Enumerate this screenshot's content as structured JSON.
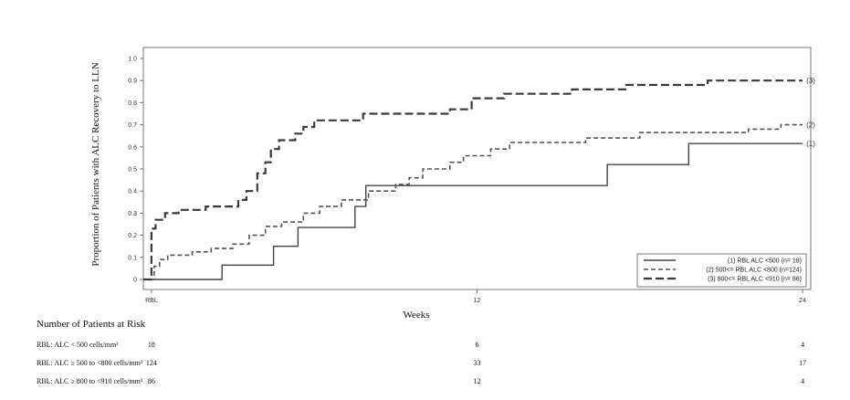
{
  "chart_data": {
    "type": "line",
    "step": true,
    "xlabel": "Weeks",
    "ylabel": "Proportion of Patients with ALC Recovery to LLN",
    "xticks": [
      {
        "value": 0,
        "label": "RBL"
      },
      {
        "value": 12,
        "label": "12"
      },
      {
        "value": 24,
        "label": "24"
      }
    ],
    "xlim": [
      -0.3,
      24.3
    ],
    "ylim": [
      0,
      1.0
    ],
    "yticks": [
      "0",
      "0.1",
      "0.2",
      "0.3",
      "0.4",
      "0.5",
      "0.6",
      "0.7",
      "0.8",
      "0.9",
      "1.0"
    ],
    "legend_position": "bottom-right",
    "series": [
      {
        "name": "(1) RBL ALC <500 (n= 18)",
        "end_label": "(1)",
        "style": "solid",
        "points": [
          [
            -0.3,
            0
          ],
          [
            2.6,
            0
          ],
          [
            2.6,
            0.065
          ],
          [
            4.5,
            0.065
          ],
          [
            4.5,
            0.15
          ],
          [
            5.4,
            0.15
          ],
          [
            5.4,
            0.235
          ],
          [
            7.5,
            0.235
          ],
          [
            7.5,
            0.33
          ],
          [
            7.9,
            0.33
          ],
          [
            7.9,
            0.425
          ],
          [
            16.8,
            0.425
          ],
          [
            16.8,
            0.52
          ],
          [
            19.8,
            0.52
          ],
          [
            19.8,
            0.615
          ],
          [
            24,
            0.615
          ]
        ]
      },
      {
        "name": "(2) 500<= RBL ALC <800 (n=124)",
        "end_label": "(2)",
        "style": "dash",
        "points": [
          [
            -0.3,
            0
          ],
          [
            0.1,
            0
          ],
          [
            0.1,
            0.06
          ],
          [
            0.3,
            0.06
          ],
          [
            0.3,
            0.09
          ],
          [
            0.6,
            0.09
          ],
          [
            0.6,
            0.11
          ],
          [
            1.5,
            0.11
          ],
          [
            1.5,
            0.125
          ],
          [
            2.2,
            0.125
          ],
          [
            2.2,
            0.14
          ],
          [
            3.0,
            0.14
          ],
          [
            3.0,
            0.16
          ],
          [
            3.6,
            0.16
          ],
          [
            3.6,
            0.2
          ],
          [
            4.2,
            0.2
          ],
          [
            4.2,
            0.24
          ],
          [
            4.8,
            0.24
          ],
          [
            4.8,
            0.26
          ],
          [
            5.6,
            0.26
          ],
          [
            5.6,
            0.3
          ],
          [
            6.2,
            0.3
          ],
          [
            6.2,
            0.33
          ],
          [
            7.0,
            0.33
          ],
          [
            7.0,
            0.36
          ],
          [
            8.0,
            0.36
          ],
          [
            8.0,
            0.4
          ],
          [
            9.0,
            0.4
          ],
          [
            9.0,
            0.43
          ],
          [
            9.5,
            0.43
          ],
          [
            9.5,
            0.46
          ],
          [
            10.0,
            0.46
          ],
          [
            10.0,
            0.5
          ],
          [
            11.0,
            0.5
          ],
          [
            11.0,
            0.53
          ],
          [
            11.5,
            0.53
          ],
          [
            11.5,
            0.56
          ],
          [
            12.5,
            0.56
          ],
          [
            12.5,
            0.59
          ],
          [
            13.2,
            0.59
          ],
          [
            13.2,
            0.62
          ],
          [
            16.0,
            0.62
          ],
          [
            16.0,
            0.64
          ],
          [
            18.0,
            0.64
          ],
          [
            18.0,
            0.665
          ],
          [
            22.0,
            0.665
          ],
          [
            22.0,
            0.68
          ],
          [
            23.2,
            0.68
          ],
          [
            23.2,
            0.7
          ],
          [
            24,
            0.7
          ]
        ]
      },
      {
        "name": "(3) 800<= RBL ALC <910 (n= 86)",
        "end_label": "(3)",
        "style": "longdash",
        "points": [
          [
            -0.3,
            0
          ],
          [
            0,
            0
          ],
          [
            0,
            0.23
          ],
          [
            0.15,
            0.23
          ],
          [
            0.15,
            0.27
          ],
          [
            0.5,
            0.27
          ],
          [
            0.5,
            0.3
          ],
          [
            1.0,
            0.3
          ],
          [
            1.0,
            0.315
          ],
          [
            2.0,
            0.315
          ],
          [
            2.0,
            0.33
          ],
          [
            3.2,
            0.33
          ],
          [
            3.2,
            0.36
          ],
          [
            3.5,
            0.36
          ],
          [
            3.5,
            0.4
          ],
          [
            3.9,
            0.4
          ],
          [
            3.9,
            0.48
          ],
          [
            4.2,
            0.48
          ],
          [
            4.2,
            0.53
          ],
          [
            4.4,
            0.53
          ],
          [
            4.4,
            0.59
          ],
          [
            4.7,
            0.59
          ],
          [
            4.7,
            0.63
          ],
          [
            5.3,
            0.63
          ],
          [
            5.3,
            0.66
          ],
          [
            5.6,
            0.66
          ],
          [
            5.6,
            0.69
          ],
          [
            6.0,
            0.69
          ],
          [
            6.0,
            0.72
          ],
          [
            7.8,
            0.72
          ],
          [
            7.8,
            0.75
          ],
          [
            11.0,
            0.75
          ],
          [
            11.0,
            0.77
          ],
          [
            11.8,
            0.77
          ],
          [
            11.8,
            0.82
          ],
          [
            13.0,
            0.82
          ],
          [
            13.0,
            0.84
          ],
          [
            15.5,
            0.84
          ],
          [
            15.5,
            0.86
          ],
          [
            17.5,
            0.86
          ],
          [
            17.5,
            0.88
          ],
          [
            20.5,
            0.88
          ],
          [
            20.5,
            0.9
          ],
          [
            24,
            0.9
          ]
        ]
      }
    ]
  },
  "risk_table": {
    "title": "Number of Patients at Risk",
    "rows": [
      {
        "label": "RBL: ALC < 500 cells/mm³",
        "values": [
          "18",
          "6",
          "4"
        ]
      },
      {
        "label": "RBL: ALC ≥ 500 to <800 cells/mm³",
        "values": [
          "124",
          "33",
          "17"
        ]
      },
      {
        "label": "RBL: ALC ≥ 800 to <910 cells/mm³",
        "values": [
          "86",
          "12",
          "4"
        ]
      }
    ]
  }
}
